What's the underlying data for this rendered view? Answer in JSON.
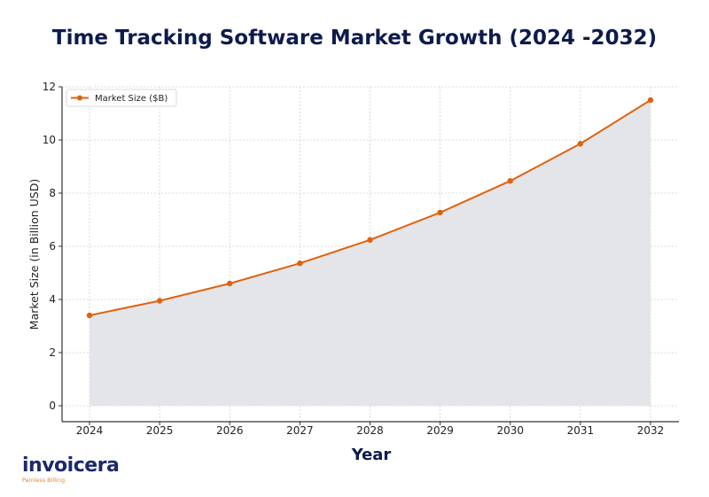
{
  "chart_data": {
    "type": "area",
    "title": "Time Tracking Software Market Growth (2024 -2032)",
    "xlabel": "Year",
    "ylabel": "Market Size (in Billion USD)",
    "categories": [
      "2024",
      "2025",
      "2026",
      "2027",
      "2028",
      "2029",
      "2030",
      "2031",
      "2032"
    ],
    "series": [
      {
        "name": "Market Size ($B)",
        "values": [
          3.4,
          3.95,
          4.6,
          5.36,
          6.24,
          7.27,
          8.46,
          9.86,
          11.5
        ]
      }
    ],
    "yticks": [
      "0",
      "2",
      "4",
      "6",
      "8",
      "10",
      "12"
    ],
    "ylim": [
      -0.6,
      12.0
    ],
    "grid": true,
    "legend_position": "upper-left",
    "colors": {
      "line": "#e0620e",
      "fill": "#e4e5e9",
      "title": "#0d1b4c"
    }
  },
  "logo": {
    "name": "invoicera",
    "tagline": "Painless Billing"
  }
}
